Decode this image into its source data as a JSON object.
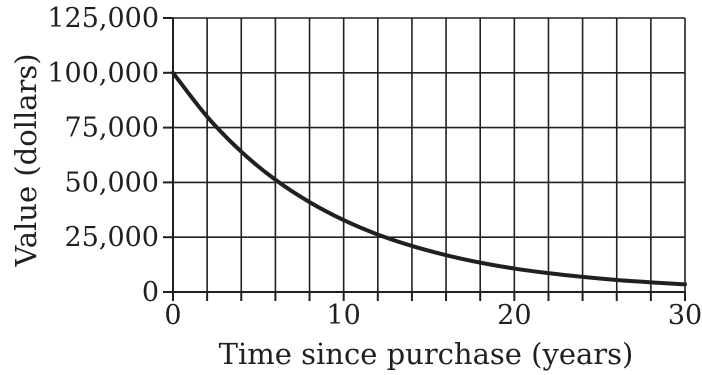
{
  "chart_data": {
    "type": "line",
    "title": "",
    "xlabel": "Time since purchase (years)",
    "ylabel": "Value (dollars)",
    "xlim": [
      0,
      30
    ],
    "ylim": [
      0,
      125000
    ],
    "x_ticks": [
      0,
      10,
      20,
      30
    ],
    "x_tick_labels": [
      "0",
      "10",
      "20",
      "30"
    ],
    "x_grid_step": 2,
    "y_ticks": [
      0,
      25000,
      50000,
      75000,
      100000,
      125000
    ],
    "y_tick_labels": [
      "0",
      "25,000",
      "50,000",
      "75,000",
      "100,000",
      "125,000"
    ],
    "grid": true,
    "series": [
      {
        "x": [
          0,
          2,
          4,
          6,
          8,
          10,
          12,
          14,
          16,
          18,
          20,
          22,
          24,
          26,
          28,
          30
        ],
        "values": [
          100000,
          80000,
          64000,
          51200,
          41000,
          32800,
          26200,
          21000,
          16800,
          13400,
          10700,
          8600,
          6900,
          5500,
          4400,
          3500
        ],
        "color": "#231f20"
      }
    ]
  }
}
